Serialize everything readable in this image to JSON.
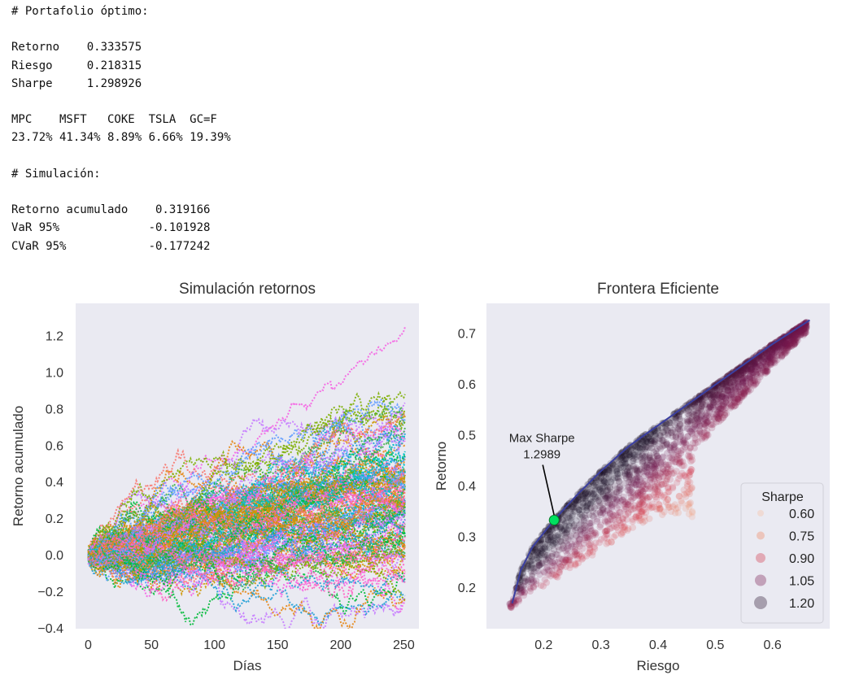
{
  "output": {
    "portfolio_header": "# Portafolio óptimo:",
    "metrics": [
      {
        "label": "Retorno",
        "value": "0.333575"
      },
      {
        "label": "Riesgo",
        "value": "0.218315"
      },
      {
        "label": "Sharpe",
        "value": "1.298926"
      }
    ],
    "weights_header_line": "MPC    MSFT   COKE  TSLA  GC=F",
    "weights_line": "23.72% 41.34% 8.89% 6.66% 19.39%",
    "sim_header": "# Simulación:",
    "sim_metrics": [
      {
        "label": "Retorno acumulado",
        "value": "0.319166"
      },
      {
        "label": "VaR 95%",
        "value": "-0.101928"
      },
      {
        "label": "CVaR 95%",
        "value": "-0.177242"
      }
    ]
  },
  "chart_data": [
    {
      "type": "line",
      "title": "Simulación retornos",
      "xlabel": "Días",
      "ylabel": "Retorno acumulado",
      "xlim": [
        -10,
        262
      ],
      "ylim": [
        -0.4,
        1.38
      ],
      "xticks": [
        0,
        50,
        100,
        150,
        200,
        250
      ],
      "yticks": [
        -0.4,
        -0.2,
        0.0,
        0.2,
        0.4,
        0.6,
        0.8,
        1.0,
        1.2
      ],
      "grid": false,
      "series_count": 120,
      "days": 252,
      "final_return_range": [
        -0.25,
        1.3
      ],
      "colors": [
        "#f564e3",
        "#c77cff",
        "#1f9fd6",
        "#00bfc4",
        "#00ba38",
        "#7cae00",
        "#cd9600",
        "#f8766d",
        "#ff61c3",
        "#3fae49",
        "#e68613",
        "#619cff"
      ]
    },
    {
      "type": "scatter",
      "title": "Frontera Eficiente",
      "xlabel": "Riesgo",
      "ylabel": "Retorno",
      "xlim": [
        0.1,
        0.7
      ],
      "ylim": [
        0.12,
        0.76
      ],
      "xticks": [
        0.2,
        0.3,
        0.4,
        0.5,
        0.6
      ],
      "yticks": [
        0.2,
        0.3,
        0.4,
        0.5,
        0.6,
        0.7
      ],
      "grid": false,
      "frontier": [
        [
          0.145,
          0.17
        ],
        [
          0.16,
          0.235
        ],
        [
          0.18,
          0.28
        ],
        [
          0.218,
          0.334
        ],
        [
          0.26,
          0.385
        ],
        [
          0.3,
          0.43
        ],
        [
          0.35,
          0.48
        ],
        [
          0.4,
          0.52
        ],
        [
          0.45,
          0.56
        ],
        [
          0.5,
          0.6
        ],
        [
          0.55,
          0.64
        ],
        [
          0.6,
          0.68
        ],
        [
          0.665,
          0.727
        ]
      ],
      "frontier_color": "#3b3fa0",
      "max_sharpe": {
        "x": 0.218315,
        "y": 0.333575,
        "label_line1": "Max Sharpe",
        "label_line2": "1.2989",
        "color": "#00e060"
      },
      "legend": {
        "title": "Sharpe",
        "entries": [
          "0.60",
          "0.75",
          "0.90",
          "1.05",
          "1.20"
        ],
        "position": "lower-right"
      }
    }
  ]
}
